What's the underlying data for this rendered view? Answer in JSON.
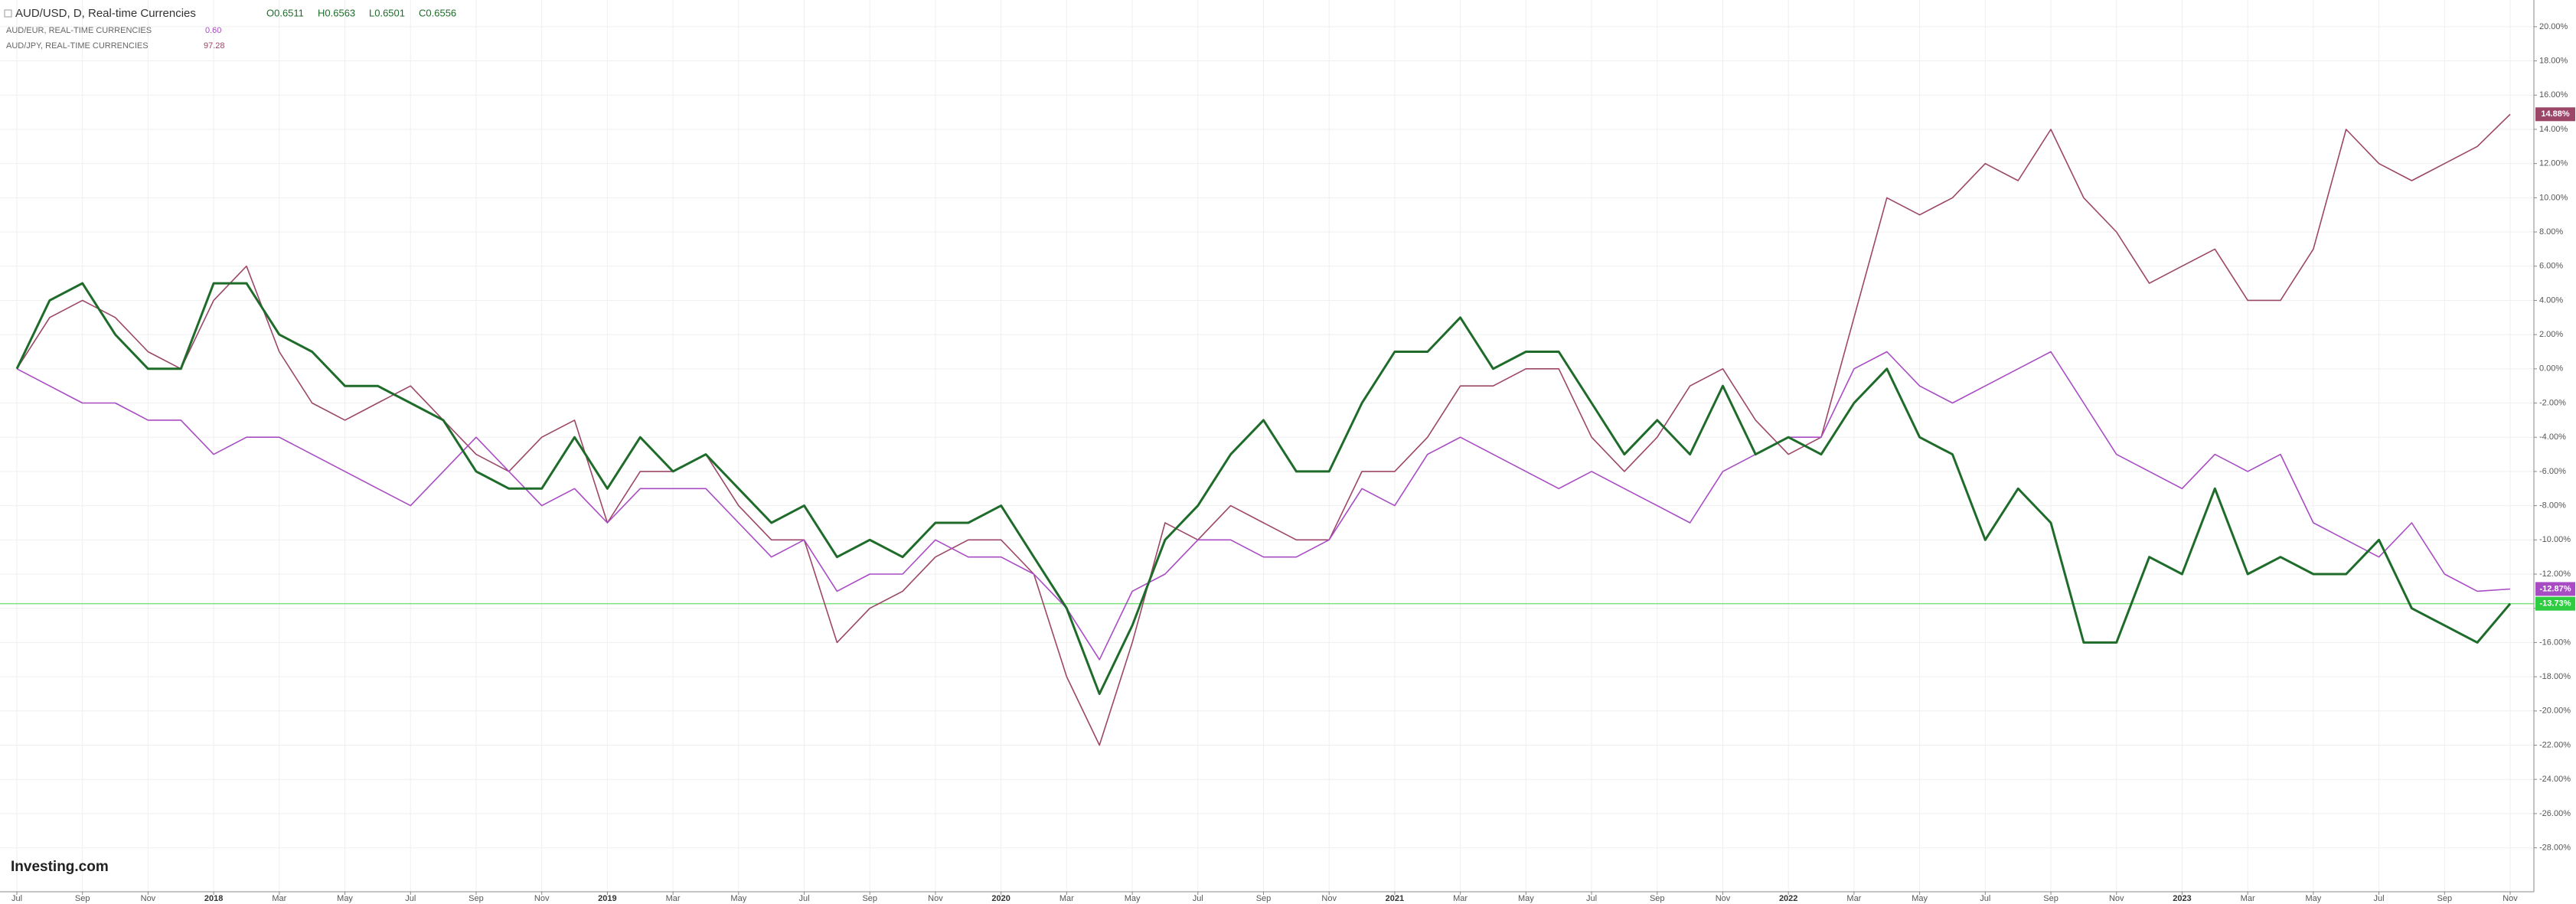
{
  "chart_data": {
    "type": "line",
    "x": [
      "2017-07",
      "2017-08",
      "2017-09",
      "2017-10",
      "2017-11",
      "2017-12",
      "2018-01",
      "2018-02",
      "2018-03",
      "2018-04",
      "2018-05",
      "2018-06",
      "2018-07",
      "2018-08",
      "2018-09",
      "2018-10",
      "2018-11",
      "2018-12",
      "2019-01",
      "2019-02",
      "2019-03",
      "2019-04",
      "2019-05",
      "2019-06",
      "2019-07",
      "2019-08",
      "2019-09",
      "2019-10",
      "2019-11",
      "2019-12",
      "2020-01",
      "2020-02",
      "2020-03",
      "2020-04",
      "2020-05",
      "2020-06",
      "2020-07",
      "2020-08",
      "2020-09",
      "2020-10",
      "2020-11",
      "2020-12",
      "2021-01",
      "2021-02",
      "2021-03",
      "2021-04",
      "2021-05",
      "2021-06",
      "2021-07",
      "2021-08",
      "2021-09",
      "2021-10",
      "2021-11",
      "2021-12",
      "2022-01",
      "2022-02",
      "2022-03",
      "2022-04",
      "2022-05",
      "2022-06",
      "2022-07",
      "2022-08",
      "2022-09",
      "2022-10",
      "2022-11",
      "2022-12",
      "2023-01",
      "2023-02",
      "2023-03",
      "2023-04",
      "2023-05",
      "2023-06",
      "2023-07",
      "2023-08",
      "2023-09",
      "2023-10",
      "2023-11"
    ],
    "xlim": [
      "2017-07",
      "2023-11"
    ],
    "xticks": [
      {
        "value": "2017-07",
        "label": "Jul"
      },
      {
        "value": "2017-09",
        "label": "Sep"
      },
      {
        "value": "2017-11",
        "label": "Nov"
      },
      {
        "value": "2018-01",
        "label": "2018"
      },
      {
        "value": "2018-03",
        "label": "Mar"
      },
      {
        "value": "2018-05",
        "label": "May"
      },
      {
        "value": "2018-07",
        "label": "Jul"
      },
      {
        "value": "2018-09",
        "label": "Sep"
      },
      {
        "value": "2018-11",
        "label": "Nov"
      },
      {
        "value": "2019-01",
        "label": "2019"
      },
      {
        "value": "2019-03",
        "label": "Mar"
      },
      {
        "value": "2019-05",
        "label": "May"
      },
      {
        "value": "2019-07",
        "label": "Jul"
      },
      {
        "value": "2019-09",
        "label": "Sep"
      },
      {
        "value": "2019-11",
        "label": "Nov"
      },
      {
        "value": "2020-01",
        "label": "2020"
      },
      {
        "value": "2020-03",
        "label": "Mar"
      },
      {
        "value": "2020-05",
        "label": "May"
      },
      {
        "value": "2020-07",
        "label": "Jul"
      },
      {
        "value": "2020-09",
        "label": "Sep"
      },
      {
        "value": "2020-11",
        "label": "Nov"
      },
      {
        "value": "2021-01",
        "label": "2021"
      },
      {
        "value": "2021-03",
        "label": "Mar"
      },
      {
        "value": "2021-05",
        "label": "May"
      },
      {
        "value": "2021-07",
        "label": "Jul"
      },
      {
        "value": "2021-09",
        "label": "Sep"
      },
      {
        "value": "2021-11",
        "label": "Nov"
      },
      {
        "value": "2022-01",
        "label": "2022"
      },
      {
        "value": "2022-03",
        "label": "Mar"
      },
      {
        "value": "2022-05",
        "label": "May"
      },
      {
        "value": "2022-07",
        "label": "Jul"
      },
      {
        "value": "2022-09",
        "label": "Sep"
      },
      {
        "value": "2022-11",
        "label": "Nov"
      },
      {
        "value": "2023-01",
        "label": "2023"
      },
      {
        "value": "2023-03",
        "label": "Mar"
      },
      {
        "value": "2023-05",
        "label": "May"
      },
      {
        "value": "2023-07",
        "label": "Jul"
      },
      {
        "value": "2023-09",
        "label": "Sep"
      },
      {
        "value": "2023-11",
        "label": "Nov"
      }
    ],
    "ylim": [
      -30.3,
      21.56
    ],
    "yticks": [
      {
        "value": -28,
        "label": "-28.00%"
      },
      {
        "value": -26,
        "label": "-26.00%"
      },
      {
        "value": -24,
        "label": "-24.00%"
      },
      {
        "value": -22,
        "label": "-22.00%"
      },
      {
        "value": -20,
        "label": "-20.00%"
      },
      {
        "value": -18,
        "label": "-18.00%"
      },
      {
        "value": -16,
        "label": "-16.00%"
      },
      {
        "value": -14,
        "label": "-14.00%"
      },
      {
        "value": -12,
        "label": "-12.00%"
      },
      {
        "value": -10,
        "label": "-10.00%"
      },
      {
        "value": -8,
        "label": "-8.00%"
      },
      {
        "value": -6,
        "label": "-6.00%"
      },
      {
        "value": -4,
        "label": "-4.00%"
      },
      {
        "value": -2,
        "label": "-2.00%"
      },
      {
        "value": 0,
        "label": "0.00%"
      },
      {
        "value": 2,
        "label": "2.00%"
      },
      {
        "value": 4,
        "label": "4.00%"
      },
      {
        "value": 6,
        "label": "6.00%"
      },
      {
        "value": 8,
        "label": "8.00%"
      },
      {
        "value": 10,
        "label": "10.00%"
      },
      {
        "value": 12,
        "label": "12.00%"
      },
      {
        "value": 14,
        "label": "14.00%"
      },
      {
        "value": 16,
        "label": "16.00%"
      },
      {
        "value": 18,
        "label": "18.00%"
      },
      {
        "value": 20,
        "label": "20.00%"
      }
    ],
    "grid": true,
    "ohlc_labels": [
      "O0.6511",
      "H0.6563",
      "L0.6501",
      "C0.6556"
    ],
    "watermark": "Investing.com",
    "series": [
      {
        "name": "AUD/USD, D, Real-time Currencies",
        "color": "#1e6b2a",
        "last_label": "-13.73%",
        "price_line_color": "#7ee07e",
        "values": [
          0,
          4,
          5,
          2,
          0,
          0,
          5,
          5,
          2,
          1,
          -1,
          -1,
          -2,
          -3,
          -6,
          -7,
          -7,
          -4,
          -7,
          -4,
          -6,
          -5,
          -7,
          -9,
          -8,
          -11,
          -10,
          -11,
          -9,
          -9,
          -8,
          -11,
          -14,
          -19,
          -15,
          -10,
          -8,
          -5,
          -3,
          -6,
          -6,
          -2,
          1,
          1,
          3,
          0,
          1,
          1,
          -2,
          -5,
          -3,
          -5,
          -1,
          -5,
          -4,
          -5,
          -2,
          0,
          -4,
          -5,
          -10,
          -7,
          -9,
          -16,
          -16,
          -11,
          -12,
          -7,
          -12,
          -11,
          -12,
          -12,
          -10,
          -14,
          -15,
          -16,
          -13.73
        ]
      },
      {
        "name": "AUD/EUR, REAL-TIME CURRENCIES",
        "legend_value": "0.60",
        "color": "#a84cc4",
        "last_label": "-12.87%",
        "values": [
          0,
          -1,
          -2,
          -2,
          -3,
          -3,
          -5,
          -4,
          -4,
          -5,
          -6,
          -7,
          -8,
          -6,
          -4,
          -6,
          -8,
          -7,
          -9,
          -7,
          -7,
          -7,
          -9,
          -11,
          -10,
          -13,
          -12,
          -12,
          -10,
          -11,
          -11,
          -12,
          -14,
          -17,
          -13,
          -12,
          -10,
          -10,
          -11,
          -11,
          -10,
          -7,
          -8,
          -5,
          -4,
          -5,
          -6,
          -7,
          -6,
          -7,
          -8,
          -9,
          -6,
          -5,
          -4,
          -4,
          0,
          1,
          -1,
          -2,
          -1,
          0,
          1,
          -2,
          -5,
          -6,
          -7,
          -5,
          -6,
          -5,
          -9,
          -10,
          -11,
          -9,
          -12,
          -13,
          -12.87
        ]
      },
      {
        "name": "AUD/JPY, REAL-TIME CURRENCIES",
        "legend_value": "97.28",
        "color": "#9c4668",
        "last_label": "14.88%",
        "values": [
          0,
          3,
          4,
          3,
          1,
          0,
          4,
          6,
          1,
          -2,
          -3,
          -2,
          -1,
          -3,
          -5,
          -6,
          -4,
          -3,
          -9,
          -6,
          -6,
          -5,
          -8,
          -10,
          -10,
          -16,
          -14,
          -13,
          -11,
          -10,
          -10,
          -12,
          -18,
          -22,
          -16,
          -9,
          -10,
          -8,
          -9,
          -10,
          -10,
          -6,
          -6,
          -4,
          -1,
          -1,
          0,
          0,
          -4,
          -6,
          -4,
          -1,
          0,
          -3,
          -5,
          -4,
          3,
          10,
          9,
          10,
          12,
          11,
          14,
          10,
          8,
          5,
          6,
          7,
          4,
          4,
          7,
          14,
          12,
          11,
          12,
          13,
          14.88
        ]
      }
    ]
  }
}
